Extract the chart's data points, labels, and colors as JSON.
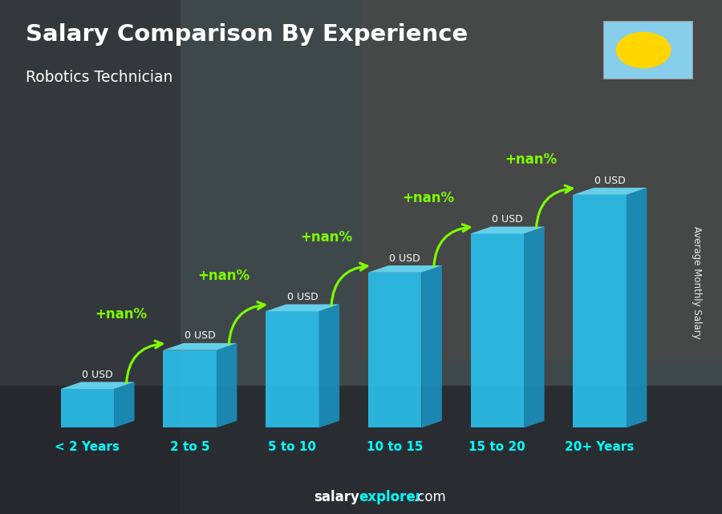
{
  "title": "Salary Comparison By Experience",
  "subtitle": "Robotics Technician",
  "categories": [
    "< 2 Years",
    "2 to 5",
    "5 to 10",
    "10 to 15",
    "15 to 20",
    "20+ Years"
  ],
  "bar_labels": [
    "0 USD",
    "0 USD",
    "0 USD",
    "0 USD",
    "0 USD",
    "0 USD"
  ],
  "increase_labels": [
    "+nan%",
    "+nan%",
    "+nan%",
    "+nan%",
    "+nan%"
  ],
  "ylabel": "Average Monthly Salary",
  "footer_salary": "salary",
  "footer_explorer": "explorer",
  "footer_com": ".com",
  "bar_heights": [
    1.0,
    2.0,
    3.0,
    4.0,
    5.0,
    6.0
  ],
  "bar_color_front": "#2BBDE8",
  "bar_color_top": "#6ADAF5",
  "bar_color_side": "#1A8FBB",
  "flag_bg": "#87CEEB",
  "flag_circle": "#FFD700",
  "title_color": "#FFFFFF",
  "subtitle_color": "#FFFFFF",
  "xticklabel_color": "#00FFFF",
  "green_color": "#7FFF00",
  "white_color": "#FFFFFF",
  "bg_photo_color": "#7a6a5a",
  "overlay_color": "#1a2030",
  "overlay_alpha": 0.55
}
